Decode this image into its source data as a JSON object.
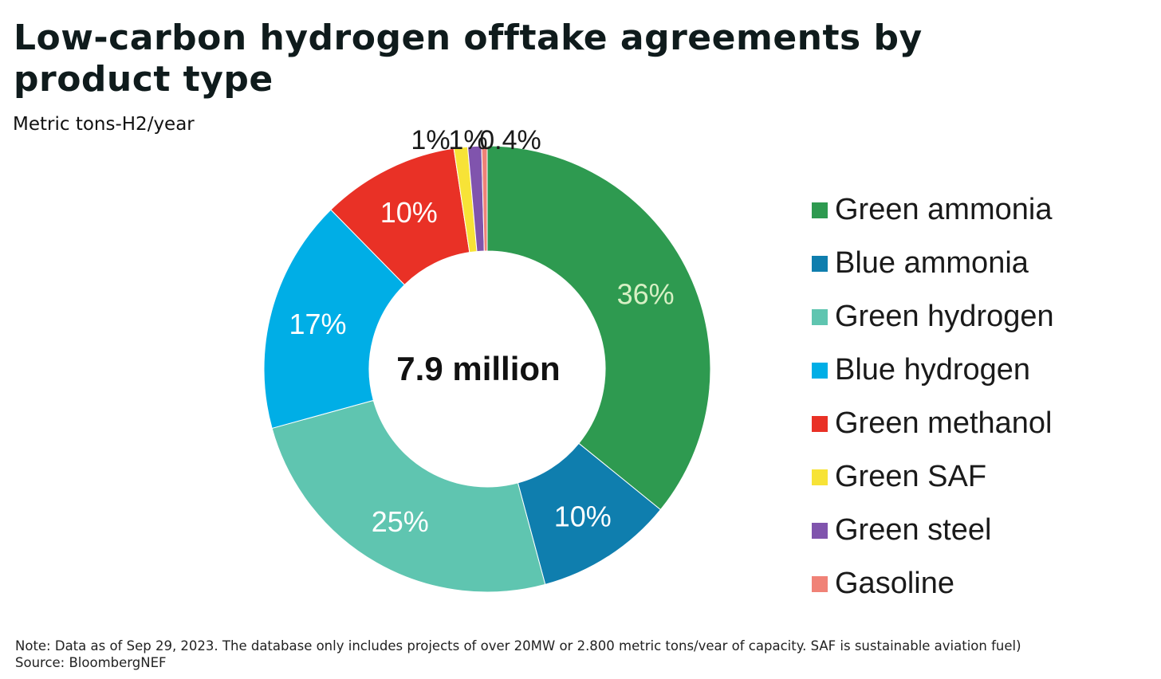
{
  "header": {
    "title": "Low-carbon hydrogen offtake agreements by product type",
    "subtitle": "Metric tons-H2/year"
  },
  "chart_data": {
    "type": "pie",
    "variant": "donut",
    "center_label": "7.9 million",
    "legend_position": "right",
    "slices": [
      {
        "name": "Green ammonia",
        "value": 36,
        "label": "36%",
        "color": "#2e9a50",
        "label_color": "#d7f0c4"
      },
      {
        "name": "Blue ammonia",
        "value": 10,
        "label": "10%",
        "color": "#0f7eae",
        "label_color": "#ffffff"
      },
      {
        "name": "Green hydrogen",
        "value": 25,
        "label": "25%",
        "color": "#5fc5b0",
        "label_color": "#ffffff"
      },
      {
        "name": "Blue hydrogen",
        "value": 17,
        "label": "17%",
        "color": "#00aee6",
        "label_color": "#ffffff"
      },
      {
        "name": "Green methanol",
        "value": 10,
        "label": "10%",
        "color": "#e93126",
        "label_color": "#ffffff"
      },
      {
        "name": "Green SAF",
        "value": 1,
        "label": "1%",
        "color": "#f7e337",
        "label_color": "#1a1a1a"
      },
      {
        "name": "Green steel",
        "value": 1,
        "label": "1%",
        "color": "#8054ad",
        "label_color": "#1a1a1a"
      },
      {
        "name": "Gasoline",
        "value": 0.4,
        "label": "0.4%",
        "color": "#f08277",
        "label_color": "#1a1a1a"
      }
    ]
  },
  "footer": {
    "note": "Note: Data as of Sep 29, 2023. The database only includes projects of over 20MW or 2.800 metric tons/vear of capacity. SAF is sustainable aviation fuel)",
    "source": "Source: BloombergNEF"
  }
}
